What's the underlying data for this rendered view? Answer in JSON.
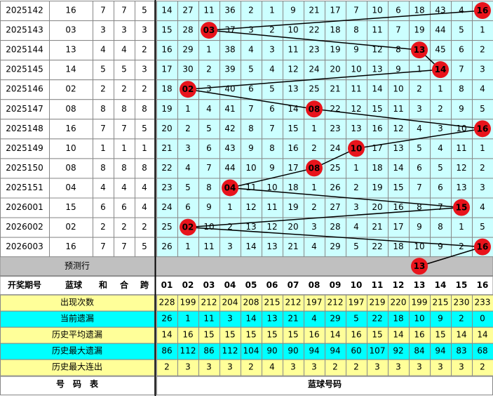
{
  "rows": [
    {
      "period": "2025142",
      "blue": "16",
      "sum": 7,
      "he": 7,
      "span": 5,
      "cells": [
        14,
        27,
        11,
        36,
        2,
        1,
        9,
        21,
        17,
        7,
        10,
        6,
        18,
        43,
        4,
        "16"
      ]
    },
    {
      "period": "2025143",
      "blue": "03",
      "sum": 3,
      "he": 3,
      "span": 3,
      "cells": [
        15,
        28,
        "03",
        37,
        3,
        2,
        10,
        22,
        18,
        8,
        11,
        7,
        19,
        44,
        5,
        1
      ]
    },
    {
      "period": "2025144",
      "blue": "13",
      "sum": 4,
      "he": 4,
      "span": 2,
      "cells": [
        16,
        29,
        1,
        38,
        4,
        3,
        11,
        23,
        19,
        9,
        12,
        8,
        "13",
        45,
        6,
        2
      ]
    },
    {
      "period": "2025145",
      "blue": "14",
      "sum": 5,
      "he": 5,
      "span": 3,
      "cells": [
        17,
        30,
        2,
        39,
        5,
        4,
        12,
        24,
        20,
        10,
        13,
        9,
        1,
        "14",
        7,
        3
      ]
    },
    {
      "period": "2025146",
      "blue": "02",
      "sum": 2,
      "he": 2,
      "span": 2,
      "cells": [
        18,
        "02",
        3,
        40,
        6,
        5,
        13,
        25,
        21,
        11,
        14,
        10,
        2,
        1,
        8,
        4
      ]
    },
    {
      "period": "2025147",
      "blue": "08",
      "sum": 8,
      "he": 8,
      "span": 8,
      "cells": [
        19,
        1,
        4,
        41,
        7,
        6,
        14,
        "08",
        22,
        12,
        15,
        11,
        3,
        2,
        9,
        5
      ]
    },
    {
      "period": "2025148",
      "blue": "16",
      "sum": 7,
      "he": 7,
      "span": 5,
      "cells": [
        20,
        2,
        5,
        42,
        8,
        7,
        15,
        1,
        23,
        13,
        16,
        12,
        4,
        3,
        10,
        "16"
      ]
    },
    {
      "period": "2025149",
      "blue": "10",
      "sum": 1,
      "he": 1,
      "span": 1,
      "cells": [
        21,
        3,
        6,
        43,
        9,
        8,
        16,
        2,
        24,
        "10",
        17,
        13,
        5,
        4,
        11,
        1
      ]
    },
    {
      "period": "2025150",
      "blue": "08",
      "sum": 8,
      "he": 8,
      "span": 8,
      "cells": [
        22,
        4,
        7,
        44,
        10,
        9,
        17,
        "08",
        25,
        1,
        18,
        14,
        6,
        5,
        12,
        2
      ]
    },
    {
      "period": "2025151",
      "blue": "04",
      "sum": 4,
      "he": 4,
      "span": 4,
      "cells": [
        23,
        5,
        8,
        "04",
        11,
        10,
        18,
        1,
        26,
        2,
        19,
        15,
        7,
        6,
        13,
        3
      ]
    },
    {
      "period": "2026001",
      "blue": "15",
      "sum": 6,
      "he": 6,
      "span": 4,
      "cells": [
        24,
        6,
        9,
        1,
        12,
        11,
        19,
        2,
        27,
        3,
        20,
        16,
        8,
        7,
        "15",
        4
      ]
    },
    {
      "period": "2026002",
      "blue": "02",
      "sum": 2,
      "he": 2,
      "span": 2,
      "cells": [
        25,
        "02",
        10,
        2,
        13,
        12,
        20,
        3,
        28,
        4,
        21,
        17,
        9,
        8,
        1,
        5
      ]
    },
    {
      "period": "2026003",
      "blue": "16",
      "sum": 7,
      "he": 7,
      "span": 5,
      "cells": [
        26,
        1,
        11,
        3,
        14,
        13,
        21,
        4,
        29,
        5,
        22,
        18,
        10,
        9,
        2,
        "16"
      ]
    }
  ],
  "prediction": {
    "label": "预测行",
    "ball": "13"
  },
  "header": {
    "left": [
      "开奖期号",
      "蓝球",
      "和",
      "合",
      "跨"
    ],
    "numbers": [
      "01",
      "02",
      "03",
      "04",
      "05",
      "06",
      "07",
      "08",
      "09",
      "10",
      "11",
      "12",
      "13",
      "14",
      "15",
      "16"
    ]
  },
  "stats": [
    {
      "label": "出现次数",
      "values": [
        228,
        199,
        212,
        204,
        208,
        215,
        212,
        197,
        212,
        197,
        219,
        220,
        199,
        215,
        230,
        233
      ]
    },
    {
      "label": "当前遗漏",
      "values": [
        26,
        1,
        11,
        3,
        14,
        13,
        21,
        4,
        29,
        5,
        22,
        18,
        10,
        9,
        2,
        0
      ]
    },
    {
      "label": "历史平均遗漏",
      "values": [
        14,
        16,
        15,
        15,
        15,
        15,
        15,
        16,
        14,
        16,
        15,
        14,
        16,
        15,
        14,
        14
      ]
    },
    {
      "label": "历史最大遗漏",
      "values": [
        86,
        112,
        86,
        112,
        104,
        90,
        90,
        94,
        94,
        60,
        107,
        92,
        84,
        94,
        83,
        68
      ]
    },
    {
      "label": "历史最大连出",
      "values": [
        2,
        3,
        3,
        3,
        2,
        4,
        3,
        3,
        2,
        2,
        3,
        3,
        3,
        3,
        3,
        2
      ]
    }
  ],
  "footer": {
    "left": "号　码　表",
    "right": "蓝球号码"
  }
}
